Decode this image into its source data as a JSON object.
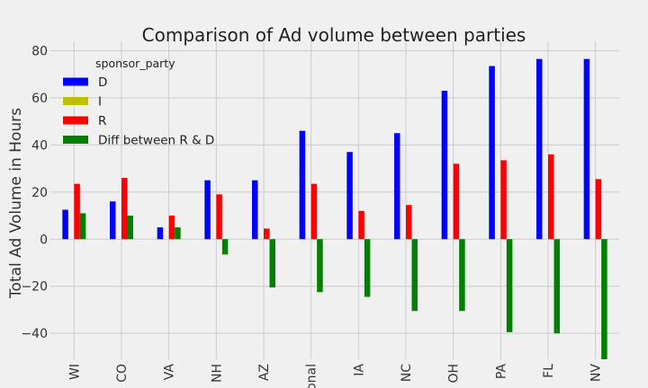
{
  "chart_data": {
    "type": "bar",
    "title": "Comparison of Ad volume between parties",
    "xlabel": "",
    "ylabel": "Total Ad Volume in Hours",
    "ylim": [
      -51,
      84
    ],
    "yticks": [
      -40,
      -20,
      0,
      20,
      40,
      60,
      80
    ],
    "grid": true,
    "legend": {
      "title": "sponsor_party",
      "placement": "top-left"
    },
    "categories": [
      "WI",
      "CO",
      "VA",
      "NH",
      "AZ",
      "National",
      "IA",
      "NC",
      "OH",
      "PA",
      "FL",
      "NV"
    ],
    "category_labels": [
      "WI",
      "CO",
      "VA",
      "NH",
      "AZ",
      "ional",
      "IA",
      "NC",
      "OH",
      "PA",
      "FL",
      "NV"
    ],
    "series": [
      {
        "name": "D",
        "color": "#0000ff",
        "values": [
          12.5,
          16,
          5,
          25,
          25,
          46,
          37,
          45,
          63,
          73.5,
          76.5,
          76.5
        ]
      },
      {
        "name": "I",
        "color": "#bfbf00",
        "values": [
          0,
          0,
          0,
          0,
          0,
          0,
          0,
          0,
          0,
          0,
          0,
          0
        ]
      },
      {
        "name": "R",
        "color": "#ff0000",
        "values": [
          23.5,
          26,
          10,
          19,
          4.5,
          23.5,
          12,
          14.5,
          32,
          33.5,
          36,
          25.5
        ]
      },
      {
        "name": "Diff between R & D",
        "color": "#008000",
        "values": [
          11,
          10,
          5,
          -6.5,
          -20.5,
          -22.5,
          -24.5,
          -30.5,
          -30.5,
          -39.5,
          -40,
          -51
        ]
      }
    ]
  }
}
